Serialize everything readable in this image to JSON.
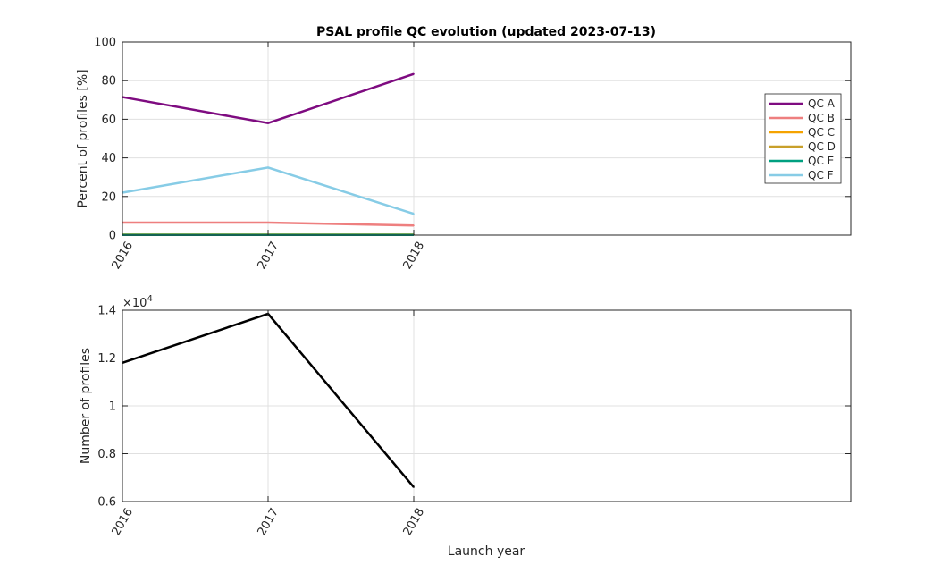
{
  "chart_data": [
    {
      "type": "line",
      "title": "PSAL profile QC evolution (updated 2023-07-13)",
      "xlabel": "",
      "ylabel": "Percent of profiles [%]",
      "x": [
        2016,
        2017,
        2018
      ],
      "xlim": [
        2016,
        2021
      ],
      "xticks": [
        "2016",
        "2017",
        "2018"
      ],
      "ylim": [
        0,
        100
      ],
      "yticks": [
        0,
        20,
        40,
        60,
        80,
        100
      ],
      "grid": true,
      "legend_position": "right",
      "series": [
        {
          "name": "QC A",
          "color": "#7e0b80",
          "values": [
            71.5,
            58,
            83.5
          ]
        },
        {
          "name": "QC B",
          "color": "#ee7f7f",
          "values": [
            6.5,
            6.5,
            5
          ]
        },
        {
          "name": "QC C",
          "color": "#f5a300",
          "values": [
            0.3,
            0.3,
            0.3
          ]
        },
        {
          "name": "QC D",
          "color": "#c8a02a",
          "values": [
            0.2,
            0.2,
            0.2
          ]
        },
        {
          "name": "QC E",
          "color": "#00a080",
          "values": [
            0.1,
            0.1,
            0.1
          ]
        },
        {
          "name": "QC F",
          "color": "#87cce6",
          "values": [
            22,
            35,
            11
          ]
        }
      ]
    },
    {
      "type": "line",
      "title": "",
      "xlabel": "Launch year",
      "ylabel": "Number of profiles",
      "x": [
        2016,
        2017,
        2018
      ],
      "xlim": [
        2016,
        2021
      ],
      "xticks": [
        "2016",
        "2017",
        "2018"
      ],
      "ylim": [
        6000,
        14000
      ],
      "yticks": [
        6000,
        8000,
        10000,
        12000,
        14000
      ],
      "ytick_labels": [
        "0.6",
        "0.8",
        "1",
        "1.2",
        "1.4"
      ],
      "y_exponent_base": "×10",
      "y_exponent_power": "4",
      "grid": true,
      "series": [
        {
          "color": "#000000",
          "values": [
            11800,
            13850,
            6600
          ]
        }
      ]
    }
  ]
}
